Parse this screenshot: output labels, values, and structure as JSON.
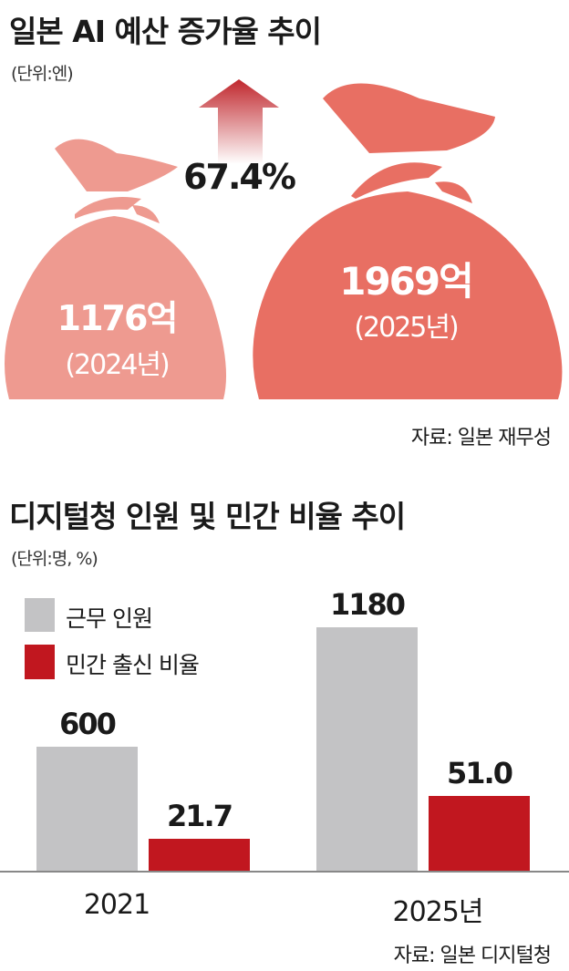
{
  "colors": {
    "bag_2024": "#ee9a90",
    "bag_2025": "#e86f63",
    "arrow": "#c0272d",
    "bar_gray": "#c3c3c5",
    "bar_red": "#c1171f",
    "axis": "#888888"
  },
  "chart_data": [
    {
      "type": "pictograph",
      "title": "일본 AI 예산 증가율 추이",
      "unit": "(단위:엔)",
      "categories": [
        "2024년",
        "2025년"
      ],
      "values": [
        1176,
        1969
      ],
      "value_labels": [
        "1176억",
        "1969억"
      ],
      "year_labels": [
        "(2024년)",
        "(2025년)"
      ],
      "growth_label": "67.4%",
      "icon": "money-bag-icon",
      "source": "자료: 일본 재무성"
    },
    {
      "type": "bar",
      "title": "디지털청 인원 및 민간 비율 추이",
      "unit": "(단위:명, %)",
      "categories": [
        "2021",
        "2025년"
      ],
      "series": [
        {
          "name": "근무 인원",
          "values": [
            600,
            1180
          ],
          "labels": [
            "600",
            "1180"
          ]
        },
        {
          "name": "민간 출신 비율",
          "values": [
            21.7,
            51.0
          ],
          "labels": [
            "21.7",
            "51.0"
          ]
        }
      ],
      "legend": "top-left",
      "grid": false,
      "source": "자료: 일본 디지털청"
    }
  ]
}
